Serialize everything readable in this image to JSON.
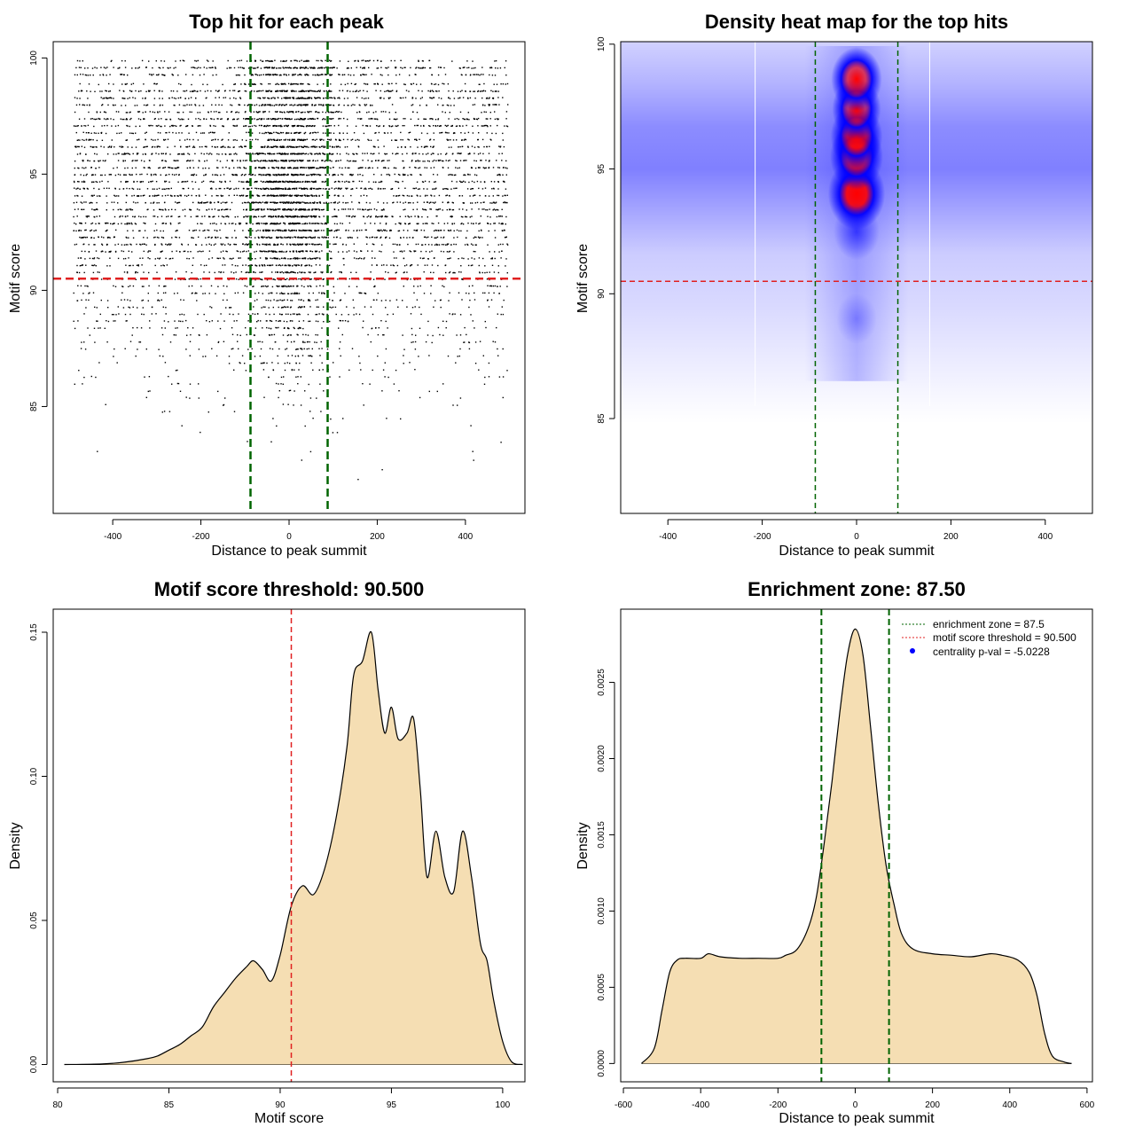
{
  "colors": {
    "point": "#000000",
    "enrichment_line": "#006400",
    "threshold_line": "#e02020",
    "density_fill": "#f5deb3",
    "heat_low": "#ffffff",
    "heat_mid": "#0000ff",
    "heat_high": "#ff0000",
    "legend_dot": "#0000ff"
  },
  "chart_data": [
    {
      "id": "scatter",
      "type": "scatter",
      "title": "Top hit for each peak",
      "xlabel": "Distance to peak summit",
      "ylabel": "Motif score",
      "xlim": [
        -535,
        535
      ],
      "ylim": [
        80.4,
        100.7
      ],
      "xticks": [
        -400,
        -200,
        0,
        200,
        400
      ],
      "xtick_labels": [
        "-400",
        "-200",
        "0",
        "200",
        "400"
      ],
      "yticks": [
        85,
        90,
        95,
        100
      ],
      "ytick_labels": [
        "85",
        "90",
        "95",
        "100"
      ],
      "x_range_points": [
        -490,
        495
      ],
      "enrichment_zone": [
        -87.5,
        87.5
      ],
      "threshold": 90.5,
      "score_levels": [
        [
          99.9,
          0.45
        ],
        [
          99.6,
          0.9
        ],
        [
          99.3,
          0.7
        ],
        [
          98.9,
          0.5
        ],
        [
          98.6,
          0.95
        ],
        [
          98.3,
          0.85
        ],
        [
          98.0,
          0.75
        ],
        [
          97.7,
          0.6
        ],
        [
          97.4,
          0.95
        ],
        [
          97.1,
          0.9
        ],
        [
          96.8,
          0.6
        ],
        [
          96.5,
          0.75
        ],
        [
          96.2,
          1.0
        ],
        [
          95.9,
          1.0
        ],
        [
          95.6,
          0.95
        ],
        [
          95.3,
          0.95
        ],
        [
          95.0,
          1.0
        ],
        [
          94.7,
          1.0
        ],
        [
          94.4,
          1.0
        ],
        [
          94.1,
          1.0
        ],
        [
          93.8,
          1.0
        ],
        [
          93.5,
          1.0
        ],
        [
          93.2,
          1.0
        ],
        [
          92.9,
          0.95
        ],
        [
          92.6,
          0.9
        ],
        [
          92.3,
          0.85
        ],
        [
          92.0,
          0.8
        ],
        [
          91.7,
          0.7
        ],
        [
          91.4,
          0.65
        ],
        [
          91.1,
          0.55
        ],
        [
          90.8,
          0.5
        ],
        [
          90.5,
          0.45
        ],
        [
          90.2,
          0.4
        ],
        [
          89.9,
          0.35
        ],
        [
          89.6,
          0.33
        ],
        [
          89.3,
          0.3
        ],
        [
          89.0,
          0.3
        ],
        [
          88.7,
          0.28
        ],
        [
          88.4,
          0.25
        ],
        [
          88.1,
          0.22
        ],
        [
          87.8,
          0.2
        ],
        [
          87.5,
          0.18
        ],
        [
          87.2,
          0.15
        ],
        [
          86.9,
          0.13
        ],
        [
          86.6,
          0.11
        ],
        [
          86.3,
          0.09
        ],
        [
          86.0,
          0.08
        ],
        [
          85.7,
          0.06
        ],
        [
          85.4,
          0.05
        ],
        [
          85.1,
          0.04
        ],
        [
          84.8,
          0.03
        ],
        [
          84.5,
          0.025
        ],
        [
          84.2,
          0.02
        ],
        [
          83.9,
          0.015
        ],
        [
          83.5,
          0.012
        ],
        [
          83.1,
          0.01
        ],
        [
          82.7,
          0.008
        ],
        [
          82.3,
          0.006
        ],
        [
          81.9,
          0.004
        ],
        [
          81.5,
          0.003
        ],
        [
          81.2,
          0.002
        ]
      ]
    },
    {
      "id": "heatmap",
      "type": "heatmap",
      "title": "Density heat map for the top hits",
      "xlabel": "Distance to peak summit",
      "ylabel": "Motif score",
      "xlim": [
        -500,
        500
      ],
      "ylim": [
        81.2,
        100.1
      ],
      "xticks": [
        -400,
        -200,
        0,
        200,
        400
      ],
      "xtick_labels": [
        "-400",
        "-200",
        "0",
        "200",
        "400"
      ],
      "yticks": [
        85,
        90,
        95,
        100
      ],
      "ytick_labels": [
        "85",
        "90",
        "95",
        "100"
      ],
      "enrichment_zone": [
        -87.5,
        87.5
      ],
      "threshold": 90.5,
      "white_lines_x": [
        -215,
        155
      ],
      "hotspots": [
        [
          0,
          94.0,
          1.0
        ],
        [
          0,
          95.5,
          0.8
        ],
        [
          0,
          96.3,
          0.75
        ],
        [
          0,
          97.4,
          0.6
        ],
        [
          0,
          98.6,
          0.7
        ],
        [
          0,
          92.5,
          0.45
        ],
        [
          0,
          89.0,
          0.2
        ]
      ]
    },
    {
      "id": "score_density",
      "type": "area",
      "title": "Motif score threshold: 90.500",
      "xlabel": "Motif score",
      "ylabel": "Density",
      "xlim": [
        79.8,
        101.0
      ],
      "ylim": [
        -0.006,
        0.158
      ],
      "xticks": [
        80,
        85,
        90,
        95,
        100
      ],
      "xtick_labels": [
        "80",
        "85",
        "90",
        "95",
        "100"
      ],
      "yticks": [
        0.0,
        0.05,
        0.1,
        0.15
      ],
      "ytick_labels": [
        "0.00",
        "0.05",
        "0.10",
        "0.15"
      ],
      "threshold": 90.5,
      "x": [
        80.3,
        82.0,
        83.0,
        84.0,
        84.5,
        85.0,
        85.5,
        86.0,
        86.5,
        87.0,
        87.5,
        88.0,
        88.5,
        88.8,
        89.2,
        89.6,
        90.0,
        90.5,
        91.0,
        91.5,
        92.0,
        92.5,
        93.0,
        93.3,
        93.7,
        94.1,
        94.4,
        94.7,
        95.0,
        95.3,
        95.7,
        96.0,
        96.3,
        96.6,
        97.0,
        97.4,
        97.8,
        98.2,
        98.6,
        99.0,
        99.3,
        99.6,
        100.0,
        100.4,
        100.9
      ],
      "y": [
        0.0,
        0.0002,
        0.0008,
        0.002,
        0.003,
        0.005,
        0.007,
        0.01,
        0.013,
        0.02,
        0.025,
        0.03,
        0.034,
        0.036,
        0.033,
        0.029,
        0.038,
        0.055,
        0.062,
        0.059,
        0.068,
        0.085,
        0.11,
        0.135,
        0.14,
        0.15,
        0.13,
        0.115,
        0.124,
        0.113,
        0.115,
        0.12,
        0.095,
        0.065,
        0.081,
        0.065,
        0.06,
        0.081,
        0.065,
        0.042,
        0.036,
        0.022,
        0.008,
        0.001,
        0.0
      ]
    },
    {
      "id": "distance_density",
      "type": "area",
      "title": "Enrichment zone: 87.50",
      "xlabel": "Distance to peak summit",
      "ylabel": "Density",
      "xlim": [
        -607,
        614
      ],
      "ylim": [
        -0.00012,
        0.00298
      ],
      "xticks": [
        -600,
        -400,
        -200,
        0,
        200,
        400,
        600
      ],
      "xtick_labels": [
        "-600",
        "-400",
        "-200",
        "0",
        "200",
        "400",
        "600"
      ],
      "yticks": [
        0.0,
        0.0005,
        0.001,
        0.0015,
        0.002,
        0.0025
      ],
      "ytick_labels": [
        "0.0000",
        "0.0005",
        "0.0010",
        "0.0015",
        "0.0020",
        "0.0025"
      ],
      "enrichment_zone": [
        -87.5,
        87.5
      ],
      "x": [
        -553,
        -520,
        -500,
        -480,
        -460,
        -440,
        -400,
        -380,
        -350,
        -300,
        -250,
        -200,
        -180,
        -150,
        -120,
        -100,
        -80,
        -60,
        -40,
        -20,
        0,
        20,
        40,
        60,
        80,
        100,
        120,
        150,
        200,
        250,
        300,
        350,
        380,
        420,
        450,
        470,
        490,
        510,
        540,
        560
      ],
      "y": [
        0.0,
        0.0001,
        0.00035,
        0.0006,
        0.00068,
        0.00069,
        0.00069,
        0.00072,
        0.0007,
        0.00069,
        0.00069,
        0.00069,
        0.00071,
        0.00075,
        0.0009,
        0.0011,
        0.00145,
        0.00185,
        0.0023,
        0.00268,
        0.00285,
        0.00268,
        0.0022,
        0.0017,
        0.0013,
        0.00105,
        0.00085,
        0.00075,
        0.00072,
        0.00071,
        0.0007,
        0.00072,
        0.00071,
        0.00068,
        0.0006,
        0.00045,
        0.0002,
        5e-05,
        1e-05,
        0.0
      ]
    }
  ],
  "legend": {
    "items": [
      {
        "label": "enrichment zone = 87.5",
        "style": "green-dotted"
      },
      {
        "label": "motif score threshold = 90.500",
        "style": "red-dotted"
      },
      {
        "label": "centrality p-val = -5.0228",
        "style": "blue-dot"
      }
    ]
  }
}
